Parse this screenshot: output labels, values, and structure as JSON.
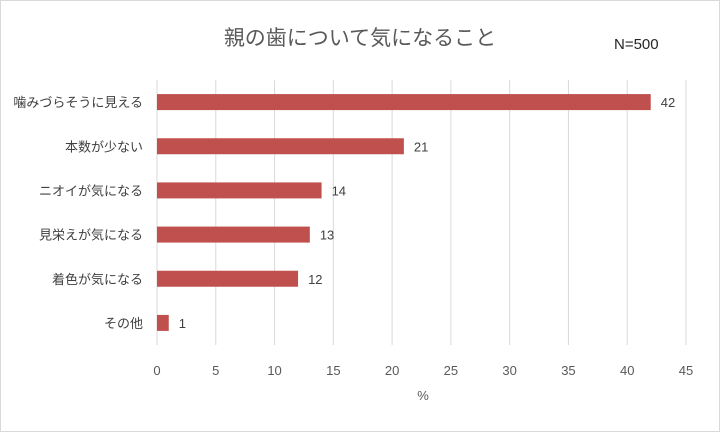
{
  "chart_data": {
    "type": "bar",
    "orientation": "horizontal",
    "title": "親の歯について気になること",
    "note": "N=500",
    "categories": [
      "噛みづらそうに見える",
      "本数が少ない",
      "ニオイが気になる",
      "見栄えが気になる",
      "着色が気になる",
      "その他"
    ],
    "values": [
      42,
      21,
      14,
      13,
      12,
      1
    ],
    "xlabel": "%",
    "ylabel": "",
    "xlim": [
      0,
      45
    ],
    "xticks": [
      0,
      5,
      10,
      15,
      20,
      25,
      30,
      35,
      40,
      45
    ],
    "grid": "vertical",
    "legend": "none",
    "colors": {
      "bar": "#c0504d",
      "grid": "#d9d9d9",
      "text": "#595959"
    }
  }
}
